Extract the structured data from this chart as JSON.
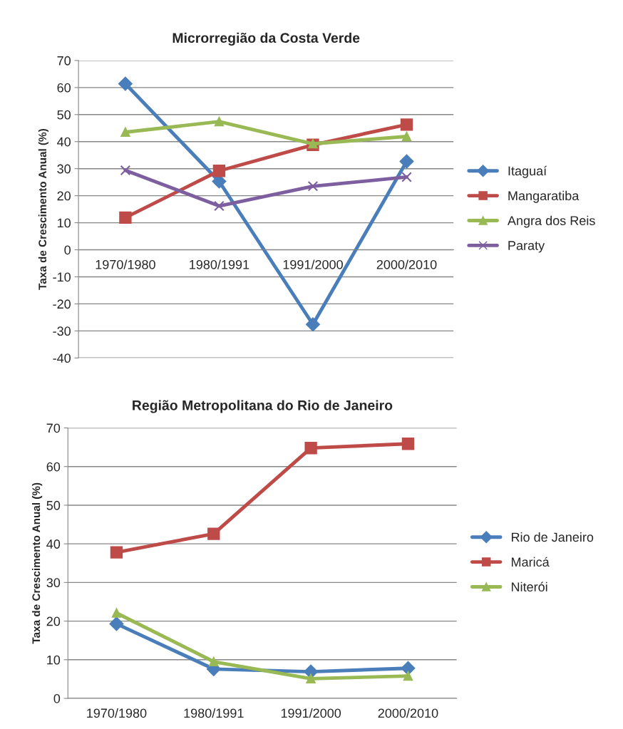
{
  "chart_data": [
    {
      "type": "line",
      "title": "Microrregião da Costa Verde",
      "ylabel": "Taxa de Crescimento Anual (%)",
      "categories": [
        "1970/1980",
        "1980/1991",
        "1991/2000",
        "2000/2010"
      ],
      "ylim": [
        -40,
        70
      ],
      "yticks": [
        -40,
        -30,
        -20,
        -10,
        0,
        10,
        20,
        30,
        40,
        50,
        60,
        70
      ],
      "grid": "y",
      "legend": "right",
      "series": [
        {
          "name": "Itaguaí",
          "color": "#4a7ebb",
          "marker": "diamond",
          "values": [
            61.4,
            25.3,
            -27.6,
            32.7
          ]
        },
        {
          "name": "Mangaratiba",
          "color": "#be4b48",
          "marker": "square",
          "values": [
            11.9,
            29.2,
            38.8,
            46.3
          ]
        },
        {
          "name": "Angra dos Reis",
          "color": "#98b954",
          "marker": "triangle",
          "values": [
            43.5,
            47.4,
            39.2,
            41.9
          ]
        },
        {
          "name": "Paraty",
          "color": "#7d5fa0",
          "marker": "cross",
          "values": [
            29.4,
            16.2,
            23.5,
            26.9
          ]
        }
      ]
    },
    {
      "type": "line",
      "title": "Região Metropolitana do Rio de Janeiro",
      "ylabel": "Taxa de Crescimento Anual (%)",
      "categories": [
        "1970/1980",
        "1980/1991",
        "1991/2000",
        "2000/2010"
      ],
      "ylim": [
        0,
        70
      ],
      "yticks": [
        0,
        10,
        20,
        30,
        40,
        50,
        60,
        70
      ],
      "grid": "y",
      "legend": "right",
      "series": [
        {
          "name": "Rio de Janeiro",
          "color": "#4a7ebb",
          "marker": "diamond",
          "values": [
            19.3,
            7.6,
            6.9,
            7.8
          ]
        },
        {
          "name": "Maricá",
          "color": "#be4b48",
          "marker": "square",
          "values": [
            37.8,
            42.6,
            64.8,
            65.9
          ]
        },
        {
          "name": "Niterói",
          "color": "#98b954",
          "marker": "triangle",
          "values": [
            22.1,
            9.5,
            5.1,
            5.8
          ]
        }
      ]
    }
  ]
}
